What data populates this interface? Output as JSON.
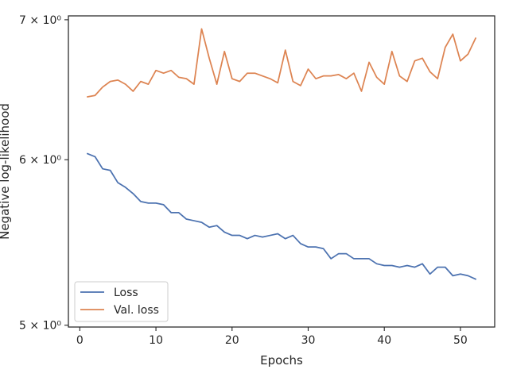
{
  "chart_data": {
    "type": "line",
    "xlabel": "Epochs",
    "ylabel": "Negative log-likelihood",
    "yscale": "log",
    "xlim": [
      -1.5,
      54.5
    ],
    "ylim": [
      4.99,
      7.03
    ],
    "grid": false,
    "legend_position": "lower-left",
    "x_ticks": [
      0,
      10,
      20,
      30,
      40,
      50
    ],
    "x_tick_labels": [
      "0",
      "10",
      "20",
      "30",
      "40",
      "50"
    ],
    "y_ticks": [
      5,
      6,
      7
    ],
    "y_tick_labels": [
      "5 × 10⁰",
      "6 × 10⁰",
      "7 × 10⁰"
    ],
    "x": [
      1,
      2,
      3,
      4,
      5,
      6,
      7,
      8,
      9,
      10,
      11,
      12,
      13,
      14,
      15,
      16,
      17,
      18,
      19,
      20,
      21,
      22,
      23,
      24,
      25,
      26,
      27,
      28,
      29,
      30,
      31,
      32,
      33,
      34,
      35,
      36,
      37,
      38,
      39,
      40,
      41,
      42,
      43,
      44,
      45,
      46,
      47,
      48,
      49,
      50,
      51,
      52
    ],
    "series": [
      {
        "name": "Loss",
        "color": "#4c72b0",
        "values": [
          6.04,
          6.02,
          5.94,
          5.93,
          5.85,
          5.82,
          5.78,
          5.73,
          5.72,
          5.72,
          5.71,
          5.66,
          5.66,
          5.62,
          5.61,
          5.6,
          5.57,
          5.58,
          5.54,
          5.52,
          5.52,
          5.5,
          5.52,
          5.51,
          5.52,
          5.53,
          5.5,
          5.52,
          5.47,
          5.45,
          5.45,
          5.44,
          5.38,
          5.41,
          5.41,
          5.38,
          5.38,
          5.38,
          5.35,
          5.34,
          5.34,
          5.33,
          5.34,
          5.33,
          5.35,
          5.29,
          5.33,
          5.33,
          5.28,
          5.29,
          5.28,
          5.26
        ]
      },
      {
        "name": "Val. loss",
        "color": "#dd8452",
        "values": [
          6.43,
          6.44,
          6.5,
          6.54,
          6.55,
          6.52,
          6.47,
          6.54,
          6.52,
          6.62,
          6.6,
          6.62,
          6.57,
          6.56,
          6.52,
          6.93,
          6.71,
          6.52,
          6.76,
          6.56,
          6.54,
          6.6,
          6.6,
          6.58,
          6.56,
          6.53,
          6.77,
          6.54,
          6.51,
          6.63,
          6.56,
          6.58,
          6.58,
          6.59,
          6.56,
          6.6,
          6.47,
          6.68,
          6.57,
          6.52,
          6.76,
          6.58,
          6.54,
          6.69,
          6.71,
          6.61,
          6.56,
          6.79,
          6.89,
          6.69,
          6.74,
          6.86
        ]
      }
    ]
  }
}
